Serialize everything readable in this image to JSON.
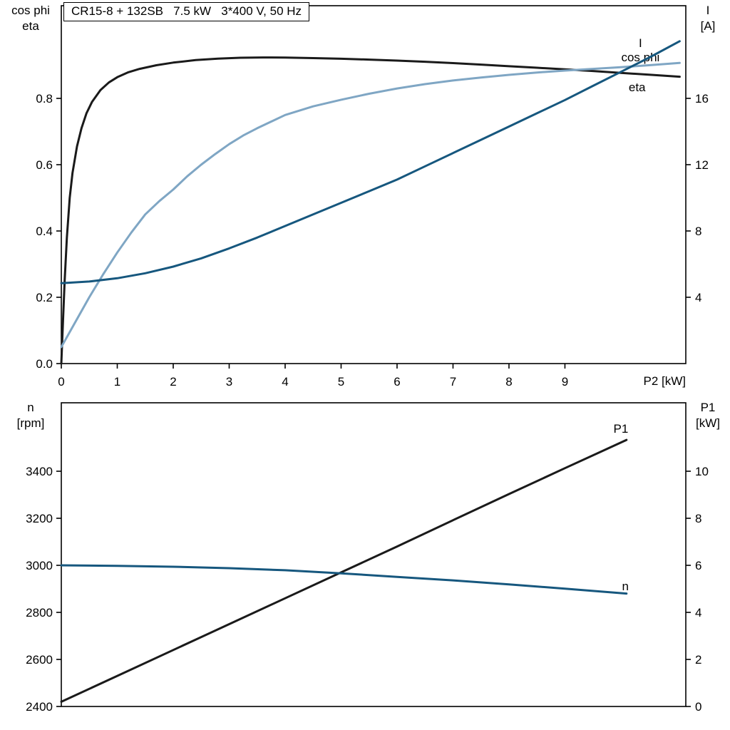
{
  "title_box": "CR15-8 + 132SB   7.5 kW   3*400 V, 50 Hz",
  "colors": {
    "black": "#1a1a1a",
    "dark_blue": "#16577e",
    "light_blue": "#7fa6c4",
    "axis": "#000000",
    "background": "#ffffff"
  },
  "top_panel": {
    "left_axis_label": "cos phi\neta",
    "right_axis_label": "I\n[A]",
    "x_axis_label": "P2 [kW]"
  },
  "bottom_panel": {
    "left_axis_label": "n\n[rpm]",
    "right_axis_label": "P1\n[kW]"
  },
  "chart_data": [
    {
      "type": "line",
      "panel": "top",
      "title": "CR15-8 + 132SB   7.5 kW   3*400 V, 50 Hz",
      "xlabel": "P2 [kW]",
      "ylabel_left": "cos phi / eta",
      "ylabel_right": "I [A]",
      "xlim": [
        0,
        11.16
      ],
      "xticks": [
        0,
        1,
        2,
        3,
        4,
        5,
        6,
        7,
        8,
        9
      ],
      "xtick_labels": [
        "0",
        "1",
        "2",
        "3",
        "4",
        "5",
        "6",
        "7",
        "8",
        "9"
      ],
      "ylim_left": [
        0,
        1.0796
      ],
      "yticks_left": [
        0.0,
        0.2,
        0.4,
        0.6,
        0.8
      ],
      "ytick_labels_left": [
        "0.0",
        "0.2",
        "0.4",
        "0.6",
        "0.8"
      ],
      "ylim_right": [
        0,
        21.59
      ],
      "yticks_right": [
        4,
        8,
        12,
        16
      ],
      "ytick_labels_right": [
        "4",
        "8",
        "12",
        "16"
      ],
      "grid": false,
      "series": [
        {
          "name": "eta",
          "label": "eta",
          "axis": "left",
          "color": "black",
          "label_at": [
            10.29,
            0.8215
          ],
          "x": [
            0,
            0.03,
            0.06,
            0.1,
            0.15,
            0.2,
            0.28,
            0.36,
            0.45,
            0.55,
            0.7,
            0.85,
            1.0,
            1.2,
            1.4,
            1.7,
            2.0,
            2.4,
            2.8,
            3.2,
            3.6,
            4.0,
            4.5,
            5.0,
            5.5,
            6.0,
            6.5,
            7.0,
            7.5,
            8.0,
            8.5,
            9.0,
            9.5,
            10.0,
            10.5,
            11.05
          ],
          "y": [
            0,
            0.13,
            0.25,
            0.38,
            0.5,
            0.575,
            0.655,
            0.71,
            0.755,
            0.79,
            0.825,
            0.848,
            0.864,
            0.879,
            0.889,
            0.9,
            0.908,
            0.9155,
            0.92,
            0.9225,
            0.9235,
            0.923,
            0.9215,
            0.9195,
            0.917,
            0.914,
            0.9105,
            0.9065,
            0.902,
            0.897,
            0.8925,
            0.8875,
            0.8825,
            0.877,
            0.8715,
            0.8655
          ]
        },
        {
          "name": "cos phi",
          "label": "cos phi",
          "axis": "left",
          "color": "light_blue",
          "label_at": [
            10.35,
            0.912
          ],
          "x": [
            0,
            0.25,
            0.5,
            0.75,
            1.0,
            1.25,
            1.5,
            1.75,
            2.0,
            2.25,
            2.5,
            2.75,
            3.0,
            3.25,
            3.5,
            4.0,
            4.5,
            5.0,
            5.5,
            6.0,
            6.5,
            7.0,
            7.5,
            8.0,
            8.5,
            9.0,
            9.5,
            10.0,
            10.5,
            11.05
          ],
          "y": [
            0.05,
            0.125,
            0.2,
            0.27,
            0.335,
            0.395,
            0.45,
            0.49,
            0.525,
            0.565,
            0.6,
            0.632,
            0.662,
            0.688,
            0.71,
            0.75,
            0.776,
            0.796,
            0.814,
            0.83,
            0.843,
            0.854,
            0.863,
            0.871,
            0.878,
            0.884,
            0.889,
            0.894,
            0.9,
            0.907
          ]
        },
        {
          "name": "I",
          "label": "I",
          "axis": "right",
          "color": "dark_blue",
          "label_at": [
            10.35,
            19.1
          ],
          "x": [
            0,
            0.5,
            1.0,
            1.5,
            2.0,
            2.5,
            3.0,
            3.5,
            4.0,
            4.5,
            5.0,
            5.5,
            6.0,
            6.5,
            7.0,
            7.5,
            8.0,
            8.5,
            9.0,
            9.5,
            10.0,
            10.5,
            11.05
          ],
          "y": [
            4.85,
            4.95,
            5.15,
            5.45,
            5.85,
            6.35,
            6.95,
            7.6,
            8.3,
            9.0,
            9.7,
            10.4,
            11.1,
            11.9,
            12.7,
            13.5,
            14.3,
            15.1,
            15.9,
            16.75,
            17.6,
            18.45,
            19.45
          ]
        }
      ]
    },
    {
      "type": "line",
      "panel": "bottom",
      "title": "",
      "xlabel": "",
      "ylabel_left": "n [rpm]",
      "ylabel_right": "P1 [kW]",
      "xlim": [
        0,
        11.16
      ],
      "ylim_left": [
        2400,
        3691
      ],
      "yticks_left": [
        2400,
        2600,
        2800,
        3000,
        3200,
        3400
      ],
      "ytick_labels_left": [
        "2400",
        "2600",
        "2800",
        "3000",
        "3200",
        "3400"
      ],
      "ylim_right": [
        0,
        12.91
      ],
      "yticks_right": [
        0,
        2,
        4,
        6,
        8,
        10
      ],
      "ytick_labels_right": [
        "0",
        "2",
        "4",
        "6",
        "8",
        "10"
      ],
      "grid": false,
      "series": [
        {
          "name": "P1",
          "label": "P1",
          "axis": "right",
          "color": "black",
          "label_at": [
            10.0,
            11.64
          ],
          "x": [
            0,
            1,
            2,
            3,
            4,
            5,
            6,
            7,
            8,
            9,
            10,
            10.1
          ],
          "y": [
            0.2,
            1.3,
            2.4,
            3.5,
            4.6,
            5.7,
            6.8,
            7.92,
            9.03,
            10.13,
            11.22,
            11.33
          ]
        },
        {
          "name": "n",
          "label": "n",
          "axis": "left",
          "color": "dark_blue",
          "label_at": [
            10.08,
            2894
          ],
          "x": [
            0,
            1,
            2,
            3,
            4,
            5,
            6,
            7,
            8,
            9,
            10,
            10.1
          ],
          "y": [
            3000,
            2998,
            2994,
            2988,
            2979,
            2966,
            2951,
            2936,
            2919,
            2901,
            2882,
            2880
          ]
        }
      ]
    }
  ]
}
